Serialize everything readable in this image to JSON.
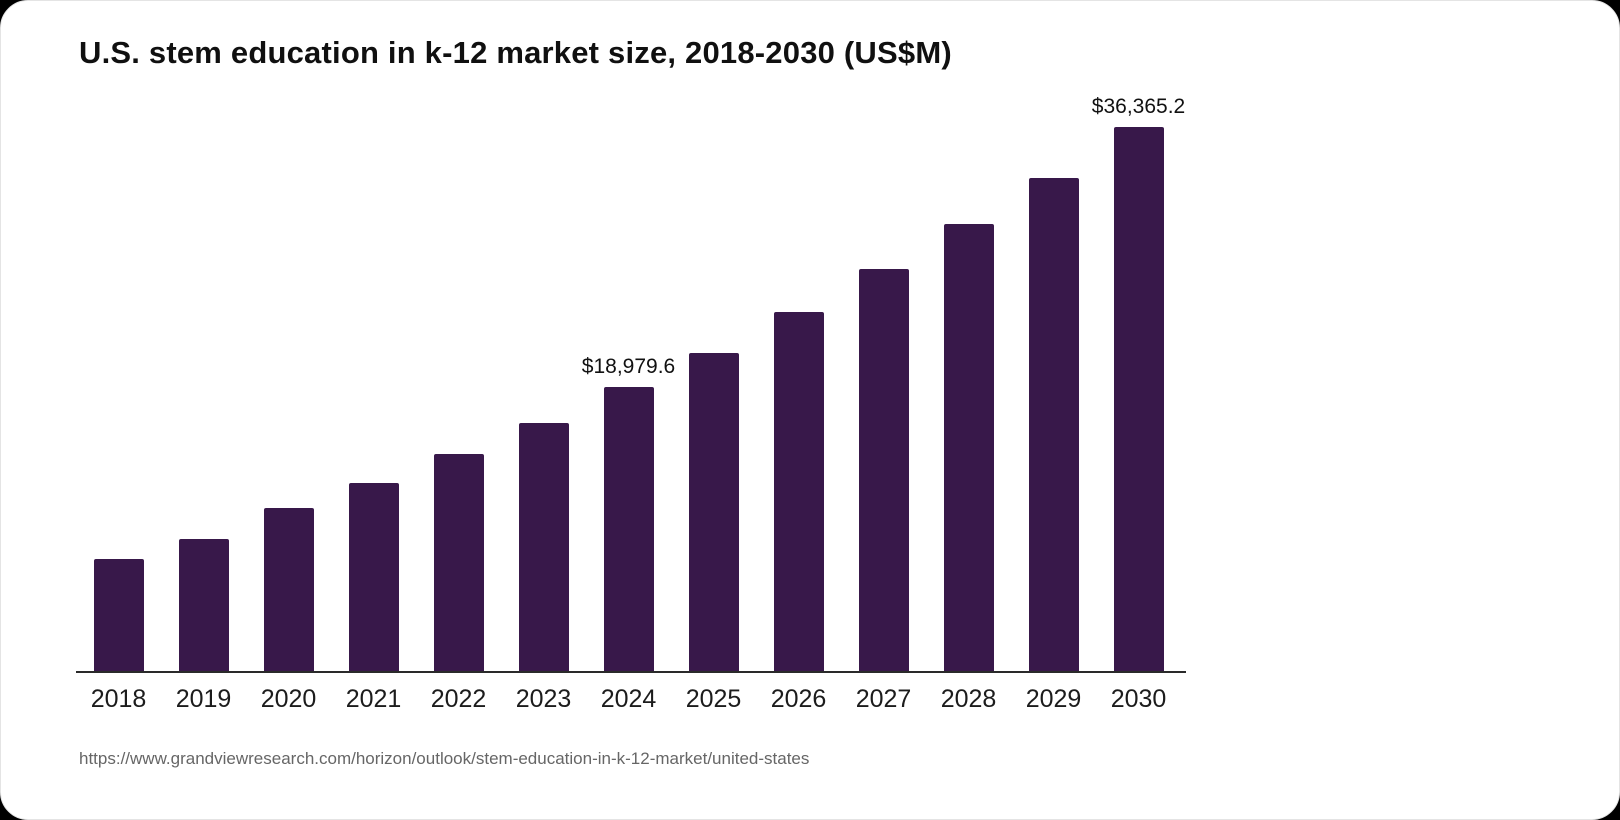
{
  "chart_data": {
    "type": "bar",
    "title": "U.S. stem education in k-12 market size, 2018-2030 (US$M)",
    "xlabel": "",
    "ylabel": "",
    "categories": [
      "2018",
      "2019",
      "2020",
      "2021",
      "2022",
      "2023",
      "2024",
      "2025",
      "2026",
      "2027",
      "2028",
      "2029",
      "2030"
    ],
    "values": [
      7500,
      8800,
      10900,
      12600,
      14500,
      16600,
      18979.6,
      21300,
      24000,
      26900,
      29900,
      33000,
      36365.2
    ],
    "data_labels": {
      "2024": "$18,979.6",
      "2030": "$36,365.2"
    },
    "ylim": [
      0,
      40000
    ],
    "grid": false,
    "legend": false,
    "bar_color": "#38184a"
  },
  "footer": {
    "source_url": "https://www.grandviewresearch.com/horizon/outlook/stem-education-in-k-12-market/united-states"
  }
}
